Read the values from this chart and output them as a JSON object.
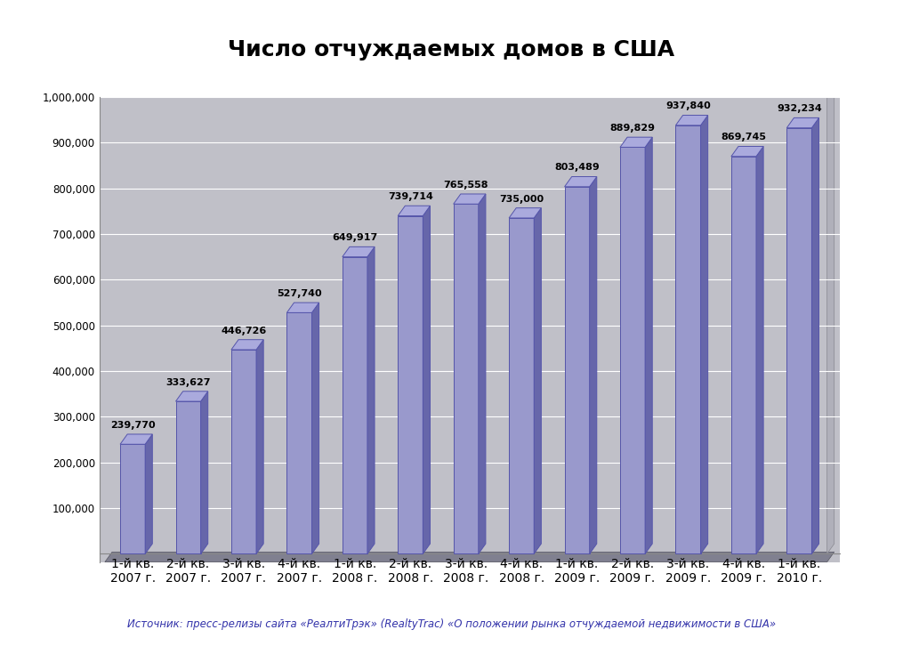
{
  "title": "Число отчуждаемых домов в США",
  "categories": [
    "1-й кв.\n2007 г.",
    "2-й кв.\n2007 г.",
    "3-й кв.\n2007 г.",
    "4-й кв.\n2007 г.",
    "1-й кв.\n2008 г.",
    "2-й кв.\n2008 г.",
    "3-й кв.\n2008 г.",
    "4-й кв.\n2008 г.",
    "1-й кв.\n2009 г.",
    "2-й кв.\n2009 г.",
    "3-й кв.\n2009 г.",
    "4-й кв.\n2009 г.",
    "1-й кв.\n2010 г."
  ],
  "values": [
    239770,
    333627,
    446726,
    527740,
    649917,
    739714,
    765558,
    735000,
    803489,
    889829,
    937840,
    869745,
    932234
  ],
  "bar_color_face": "#9999cc",
  "bar_color_right": "#6666aa",
  "bar_color_top": "#aaaadd",
  "background_plot": "#c0c0c8",
  "background_fig": "#ffffff",
  "floor_color": "#808090",
  "right_wall_color": "#b0b0ba",
  "ylim": [
    0,
    1000000
  ],
  "yticks": [
    0,
    100000,
    200000,
    300000,
    400000,
    500000,
    600000,
    700000,
    800000,
    900000,
    1000000
  ],
  "ytick_labels": [
    "",
    "100,000",
    "200,000",
    "300,000",
    "400,000",
    "500,000",
    "600,000",
    "700,000",
    "800,000",
    "900,000",
    "1,000,000"
  ],
  "footnote": "Источник: пресс-релизы сайта «РеалтиТрэк» (RealtyTrac) «О положении рынка отчуждаемой недвижимости в США»",
  "title_fontsize": 18,
  "label_fontsize": 8.5,
  "value_fontsize": 8,
  "footnote_fontsize": 8.5
}
